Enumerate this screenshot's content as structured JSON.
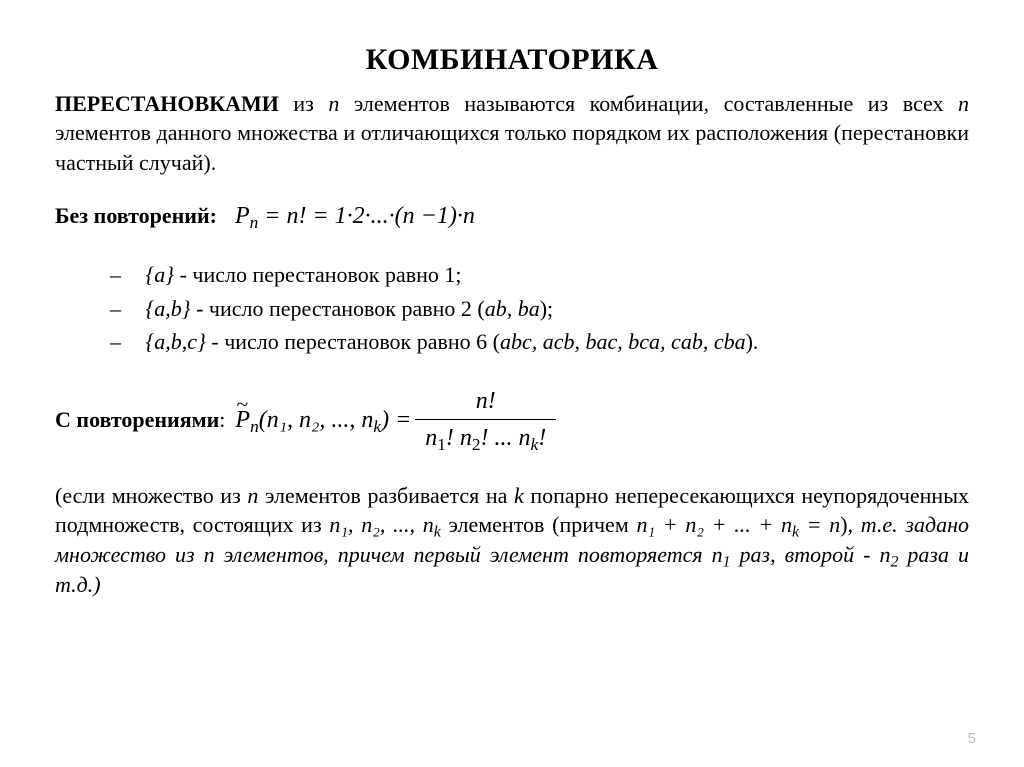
{
  "title": "КОМБИНАТОРИКА",
  "p1_lead": "ПЕРЕСТАНОВКАМИ",
  "p1_rest_a": " из ",
  "p1_rest_b": " элементов называются комбинации, составленные из всех ",
  "p1_rest_c": " элементов данного множества и отличающихся только порядком их расположения (перестановки частный случай).",
  "var_n": "n",
  "sec1_label": "Без повторений:",
  "formula1_lhs": "P",
  "formula1_sub": "n",
  "formula1_rhs": " = n! = 1·2·...·(n −1)·n",
  "li1_set": "{a}",
  "li1_text": " - число перестановок равно 1;",
  "li2_set": "{a,b}",
  "li2_text_a": " - число перестановок равно 2 (",
  "li2_perm": "ab, ba",
  "li2_text_b": ");",
  "li3_set": "{a,b,c}",
  "li3_text_a": " - число перестановок равно 6 (",
  "li3_perm": "abc, acb, bac, bca, cab, cba",
  "li3_text_b": ").",
  "sec2_label": "С повторениями",
  "sec2_colon": ":",
  "formula2_P": "P",
  "formula2_sub": "n",
  "formula2_args": "(n₁, n₂, ..., n",
  "formula2_args_k": "k",
  "formula2_args_close": ") =",
  "formula2_num": "n!",
  "formula2_den_a": "n",
  "formula2_den_1": "1",
  "formula2_den_b": "! n",
  "formula2_den_2": "2",
  "formula2_den_c": "! ... n",
  "formula2_den_k": "k",
  "formula2_den_d": "!",
  "p2_a": "(если множество из ",
  "p2_b": " элементов разбивается на ",
  "var_k": "k",
  "p2_c": " попарно непересекающихся неупорядоченных подмножеств, состоящих из ",
  "p2_seq": "n₁, n₂, ..., n",
  "p2_seq_k": "k",
  "p2_d": " элементов (причем ",
  "p2_sum": "n₁ + n₂ + ... + n",
  "p2_sum_eq": " = n",
  "p2_e": "), ",
  "p2_ital_a": "т.е. задано множество из ",
  "p2_ital_b": " элементов, причем первый элемент повторяется ",
  "p2_n1": "n",
  "p2_n1_sub": "1",
  "p2_ital_c": " раз, второй - ",
  "p2_n2": "n",
  "p2_n2_sub": "2",
  "p2_ital_d": " раза и т.д.)",
  "page_number": "5"
}
